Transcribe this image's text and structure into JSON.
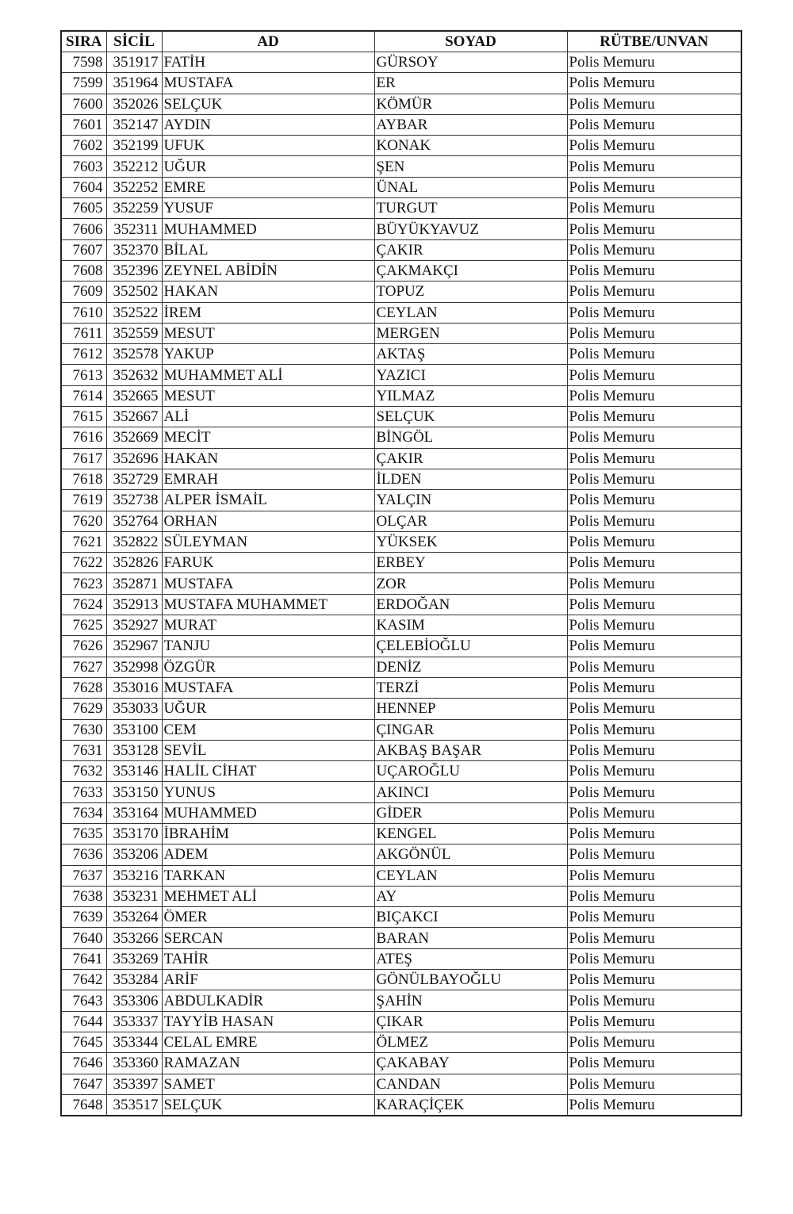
{
  "table": {
    "headers": [
      "SIRA",
      "SİCİL",
      "AD",
      "SOYAD",
      "RÜTBE/UNVAN"
    ],
    "rows": [
      [
        "7598",
        "351917",
        "FATİH",
        "GÜRSOY",
        "Polis Memuru"
      ],
      [
        "7599",
        "351964",
        "MUSTAFA",
        "ER",
        "Polis Memuru"
      ],
      [
        "7600",
        "352026",
        "SELÇUK",
        "KÖMÜR",
        "Polis Memuru"
      ],
      [
        "7601",
        "352147",
        "AYDIN",
        "AYBAR",
        "Polis Memuru"
      ],
      [
        "7602",
        "352199",
        "UFUK",
        "KONAK",
        "Polis Memuru"
      ],
      [
        "7603",
        "352212",
        "UĞUR",
        "ŞEN",
        "Polis Memuru"
      ],
      [
        "7604",
        "352252",
        "EMRE",
        "ÜNAL",
        "Polis Memuru"
      ],
      [
        "7605",
        "352259",
        "YUSUF",
        "TURGUT",
        "Polis Memuru"
      ],
      [
        "7606",
        "352311",
        "MUHAMMED",
        "BÜYÜKYAVUZ",
        "Polis Memuru"
      ],
      [
        "7607",
        "352370",
        "BİLAL",
        "ÇAKIR",
        "Polis Memuru"
      ],
      [
        "7608",
        "352396",
        "ZEYNEL ABİDİN",
        "ÇAKMAKÇI",
        "Polis Memuru"
      ],
      [
        "7609",
        "352502",
        "HAKAN",
        "TOPUZ",
        "Polis Memuru"
      ],
      [
        "7610",
        "352522",
        "İREM",
        "CEYLAN",
        "Polis Memuru"
      ],
      [
        "7611",
        "352559",
        "MESUT",
        "MERGEN",
        "Polis Memuru"
      ],
      [
        "7612",
        "352578",
        "YAKUP",
        "AKTAŞ",
        "Polis Memuru"
      ],
      [
        "7613",
        "352632",
        "MUHAMMET ALİ",
        "YAZICI",
        "Polis Memuru"
      ],
      [
        "7614",
        "352665",
        "MESUT",
        "YILMAZ",
        "Polis Memuru"
      ],
      [
        "7615",
        "352667",
        "ALİ",
        "SELÇUK",
        "Polis Memuru"
      ],
      [
        "7616",
        "352669",
        "MECİT",
        "BİNGÖL",
        "Polis Memuru"
      ],
      [
        "7617",
        "352696",
        "HAKAN",
        "ÇAKIR",
        "Polis Memuru"
      ],
      [
        "7618",
        "352729",
        "EMRAH",
        "İLDEN",
        "Polis Memuru"
      ],
      [
        "7619",
        "352738",
        "ALPER İSMAİL",
        "YALÇIN",
        "Polis Memuru"
      ],
      [
        "7620",
        "352764",
        "ORHAN",
        "OLÇAR",
        "Polis Memuru"
      ],
      [
        "7621",
        "352822",
        "SÜLEYMAN",
        "YÜKSEK",
        "Polis Memuru"
      ],
      [
        "7622",
        "352826",
        "FARUK",
        "ERBEY",
        "Polis Memuru"
      ],
      [
        "7623",
        "352871",
        "MUSTAFA",
        "ZOR",
        "Polis Memuru"
      ],
      [
        "7624",
        "352913",
        "MUSTAFA MUHAMMET",
        "ERDOĞAN",
        "Polis Memuru"
      ],
      [
        "7625",
        "352927",
        "MURAT",
        "KASIM",
        "Polis Memuru"
      ],
      [
        "7626",
        "352967",
        "TANJU",
        "ÇELEBİOĞLU",
        "Polis Memuru"
      ],
      [
        "7627",
        "352998",
        "ÖZGÜR",
        "DENİZ",
        "Polis Memuru"
      ],
      [
        "7628",
        "353016",
        "MUSTAFA",
        "TERZİ",
        "Polis Memuru"
      ],
      [
        "7629",
        "353033",
        "UĞUR",
        "HENNEP",
        "Polis Memuru"
      ],
      [
        "7630",
        "353100",
        "CEM",
        "ÇINGAR",
        "Polis Memuru"
      ],
      [
        "7631",
        "353128",
        "SEVİL",
        "AKBAŞ BAŞAR",
        "Polis Memuru"
      ],
      [
        "7632",
        "353146",
        "HALİL CİHAT",
        "UÇAROĞLU",
        "Polis Memuru"
      ],
      [
        "7633",
        "353150",
        "YUNUS",
        "AKINCI",
        "Polis Memuru"
      ],
      [
        "7634",
        "353164",
        "MUHAMMED",
        "GİDER",
        "Polis Memuru"
      ],
      [
        "7635",
        "353170",
        "İBRAHİM",
        "KENGEL",
        "Polis Memuru"
      ],
      [
        "7636",
        "353206",
        "ADEM",
        "AKGÖNÜL",
        "Polis Memuru"
      ],
      [
        "7637",
        "353216",
        "TARKAN",
        "CEYLAN",
        "Polis Memuru"
      ],
      [
        "7638",
        "353231",
        "MEHMET ALİ",
        "AY",
        "Polis Memuru"
      ],
      [
        "7639",
        "353264",
        "ÖMER",
        "BIÇAKCI",
        "Polis Memuru"
      ],
      [
        "7640",
        "353266",
        "SERCAN",
        "BARAN",
        "Polis Memuru"
      ],
      [
        "7641",
        "353269",
        "TAHİR",
        "ATEŞ",
        "Polis Memuru"
      ],
      [
        "7642",
        "353284",
        "ARİF",
        "GÖNÜLBAYOĞLU",
        "Polis Memuru"
      ],
      [
        "7643",
        "353306",
        "ABDULKADİR",
        "ŞAHİN",
        "Polis Memuru"
      ],
      [
        "7644",
        "353337",
        "TAYYİB HASAN",
        "ÇIKAR",
        "Polis Memuru"
      ],
      [
        "7645",
        "353344",
        "CELAL EMRE",
        "ÖLMEZ",
        "Polis Memuru"
      ],
      [
        "7646",
        "353360",
        "RAMAZAN",
        "ÇAKABAY",
        "Polis Memuru"
      ],
      [
        "7647",
        "353397",
        "SAMET",
        "CANDAN",
        "Polis Memuru"
      ],
      [
        "7648",
        "353517",
        "SELÇUK",
        "KARAÇİÇEK",
        "Polis Memuru"
      ]
    ]
  }
}
